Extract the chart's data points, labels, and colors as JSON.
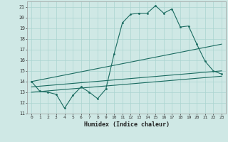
{
  "xlabel": "Humidex (Indice chaleur)",
  "bg_color": "#cfe8e5",
  "grid_color": "#aad4d0",
  "line_color": "#1a6b60",
  "xlim": [
    -0.5,
    23.5
  ],
  "ylim": [
    11,
    21.5
  ],
  "yticks": [
    11,
    12,
    13,
    14,
    15,
    16,
    17,
    18,
    19,
    20,
    21
  ],
  "xticks": [
    0,
    1,
    2,
    3,
    4,
    5,
    6,
    7,
    8,
    9,
    10,
    11,
    12,
    13,
    14,
    15,
    16,
    17,
    18,
    19,
    20,
    21,
    22,
    23
  ],
  "series1_x": [
    0,
    1,
    2,
    3,
    4,
    5,
    6,
    7,
    8,
    9,
    10,
    11,
    12,
    13,
    14,
    15,
    16,
    17,
    18,
    19,
    20,
    21,
    22,
    23
  ],
  "series1_y": [
    14.0,
    13.1,
    13.0,
    12.8,
    11.5,
    12.7,
    13.5,
    13.0,
    12.4,
    13.3,
    16.6,
    19.5,
    20.3,
    20.4,
    20.4,
    21.1,
    20.4,
    20.8,
    19.1,
    19.2,
    17.5,
    15.9,
    15.0,
    14.7
  ],
  "series2_x": [
    0,
    23
  ],
  "series2_y": [
    14.0,
    17.5
  ],
  "series3_x": [
    0,
    23
  ],
  "series3_y": [
    13.5,
    15.0
  ],
  "series4_x": [
    0,
    23
  ],
  "series4_y": [
    13.0,
    14.5
  ]
}
